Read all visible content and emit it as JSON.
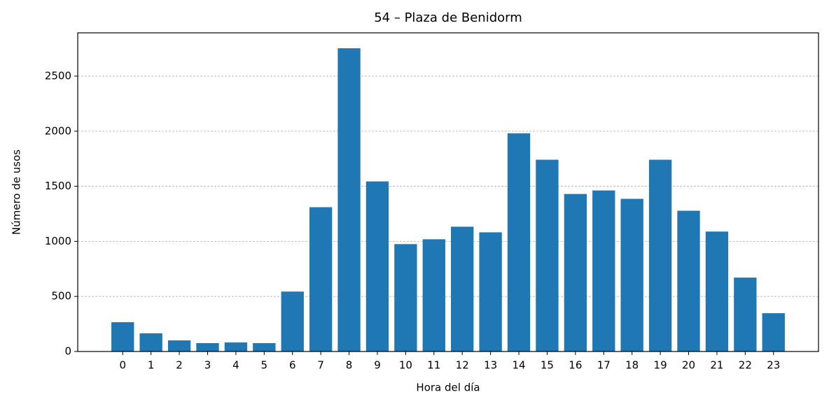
{
  "chart_data": {
    "type": "bar",
    "title": "54 – Plaza de Benidorm",
    "x_label": "Hora del día",
    "y_label": "Número de usos",
    "categories": [
      "0",
      "1",
      "2",
      "3",
      "4",
      "5",
      "6",
      "7",
      "8",
      "9",
      "10",
      "11",
      "12",
      "13",
      "14",
      "15",
      "16",
      "17",
      "18",
      "19",
      "20",
      "21",
      "22",
      "23"
    ],
    "values": [
      266,
      165,
      101,
      76,
      82,
      76,
      544,
      1310,
      2753,
      1544,
      975,
      1019,
      1133,
      1082,
      1981,
      1741,
      1430,
      1462,
      1386,
      1741,
      1278,
      1089,
      671,
      348
    ],
    "color": "#1f77b4",
    "ylim": [
      0,
      2893
    ],
    "yticks": [
      0,
      500,
      1000,
      1500,
      2000,
      2500
    ],
    "grid": true
  }
}
